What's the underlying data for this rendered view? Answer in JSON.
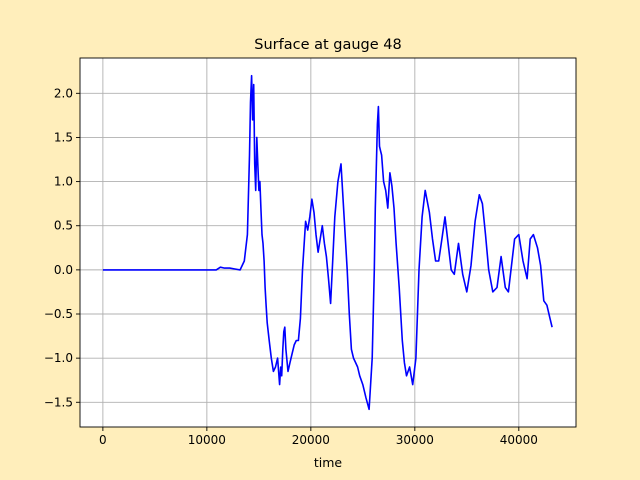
{
  "chart_data": {
    "type": "line",
    "title": "Surface at gauge 48",
    "xlabel": "time",
    "ylabel": "",
    "xlim": [
      -2200,
      45500
    ],
    "ylim": [
      -1.78,
      2.4
    ],
    "x_ticks": [
      0,
      10000,
      20000,
      30000,
      40000
    ],
    "y_ticks": [
      -1.5,
      -1.0,
      -0.5,
      0.0,
      0.5,
      1.0,
      1.5,
      2.0
    ],
    "x_tick_labels": [
      "0",
      "10000",
      "20000",
      "30000",
      "40000"
    ],
    "y_tick_labels": [
      "−1.5",
      "−1.0",
      "−0.5",
      "0.0",
      "0.5",
      "1.0",
      "1.5",
      "2.0"
    ],
    "grid": true,
    "colors": {
      "line": "#0000ff",
      "background": "#ffeebb",
      "plot_area": "#ffffff",
      "grid": "#b0b0b0"
    },
    "series": [
      {
        "color": "#0000ff",
        "x": [
          0,
          0,
          10900,
          11300,
          11700,
          12200,
          12700,
          13200,
          13600,
          13900,
          14100,
          14200,
          14300,
          14400,
          14500,
          14600,
          14700,
          14800,
          14900,
          15000,
          15100,
          15200,
          15300,
          15400,
          15500,
          15600,
          15700,
          15800,
          16000,
          16200,
          16400,
          16600,
          16800,
          17000,
          17100,
          17200,
          17300,
          17400,
          17500,
          17600,
          17800,
          18000,
          18200,
          18400,
          18600,
          18800,
          19000,
          19200,
          19500,
          19700,
          19900,
          20100,
          20300,
          20500,
          20700,
          20900,
          21100,
          21300,
          21500,
          21700,
          21900,
          22100,
          22300,
          22600,
          22900,
          23200,
          23500,
          23700,
          23900,
          24100,
          24300,
          24500,
          24700,
          25000,
          25300,
          25600,
          25900,
          26100,
          26200,
          26300,
          26400,
          26500,
          26600,
          26700,
          26800,
          26900,
          27000,
          27200,
          27400,
          27600,
          27800,
          28000,
          28200,
          28500,
          28800,
          29000,
          29200,
          29500,
          29800,
          30100,
          30400,
          30700,
          31000,
          31400,
          31700,
          32000,
          32300,
          32600,
          32900,
          33200,
          33500,
          33800,
          34200,
          34600,
          35000,
          35400,
          35800,
          36200,
          36500,
          36800,
          37100,
          37500,
          37900,
          38300,
          38700,
          39000,
          39300,
          39600,
          40000,
          40400,
          40800,
          41100,
          41400,
          41800,
          42100,
          42400,
          42700,
          43000,
          43200
        ],
        "y": [
          0.0,
          0.0,
          0.0,
          0.03,
          0.02,
          0.02,
          0.01,
          0.0,
          0.1,
          0.4,
          1.3,
          1.9,
          2.2,
          1.7,
          2.1,
          1.2,
          0.9,
          1.5,
          1.2,
          0.9,
          1.0,
          0.7,
          0.4,
          0.3,
          0.1,
          -0.2,
          -0.4,
          -0.6,
          -0.8,
          -1.0,
          -1.15,
          -1.1,
          -1.0,
          -1.3,
          -1.1,
          -1.2,
          -0.9,
          -0.7,
          -0.65,
          -0.9,
          -1.15,
          -1.05,
          -0.95,
          -0.85,
          -0.8,
          -0.8,
          -0.55,
          0.0,
          0.55,
          0.45,
          0.6,
          0.8,
          0.65,
          0.4,
          0.2,
          0.35,
          0.5,
          0.3,
          0.15,
          -0.1,
          -0.38,
          0.1,
          0.6,
          1.0,
          1.2,
          0.6,
          0.0,
          -0.5,
          -0.9,
          -1.0,
          -1.05,
          -1.1,
          -1.2,
          -1.3,
          -1.45,
          -1.58,
          -1.0,
          0.0,
          0.7,
          1.2,
          1.65,
          1.85,
          1.4,
          1.35,
          1.3,
          1.15,
          1.0,
          0.9,
          0.7,
          1.1,
          0.95,
          0.7,
          0.3,
          -0.2,
          -0.8,
          -1.05,
          -1.2,
          -1.1,
          -1.3,
          -1.0,
          0.0,
          0.6,
          0.9,
          0.65,
          0.35,
          0.1,
          0.1,
          0.35,
          0.6,
          0.3,
          0.0,
          -0.05,
          0.3,
          -0.05,
          -0.25,
          0.05,
          0.55,
          0.85,
          0.75,
          0.4,
          0.0,
          -0.25,
          -0.2,
          0.15,
          -0.2,
          -0.25,
          0.05,
          0.35,
          0.4,
          0.1,
          -0.1,
          0.35,
          0.4,
          0.25,
          0.05,
          -0.35,
          -0.4,
          -0.55,
          -0.65
        ]
      }
    ]
  }
}
